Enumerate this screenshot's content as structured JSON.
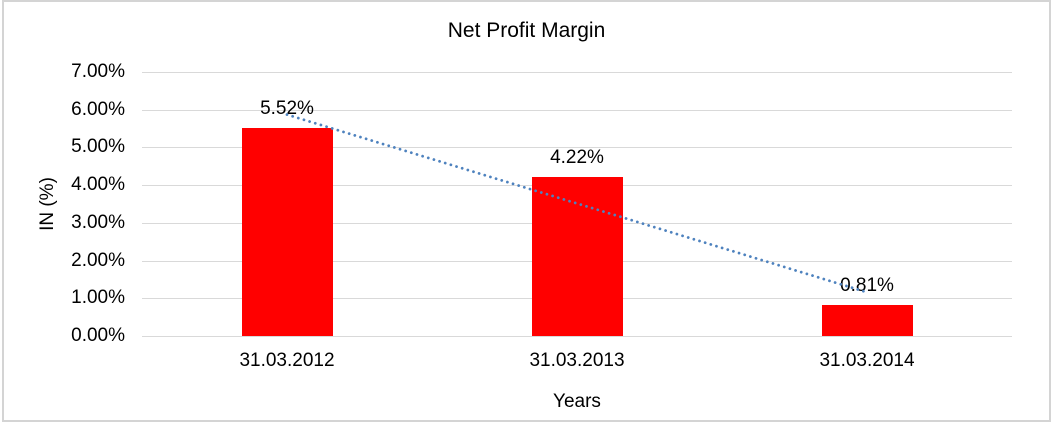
{
  "frame": {
    "border_color": "#d4d4d4"
  },
  "chart_data": {
    "type": "bar",
    "title": "Net Profit Margin",
    "xlabel": "Years",
    "ylabel": "IN (%)",
    "categories": [
      "31.03.2012",
      "31.03.2013",
      "31.03.2014"
    ],
    "series": [
      {
        "name": "Net Profit Margin",
        "values": [
          5.52,
          4.22,
          0.81
        ]
      }
    ],
    "data_labels": [
      "5.52%",
      "4.22%",
      "0.81%"
    ],
    "y_tick_labels": [
      "7.00%",
      "6.00%",
      "5.00%",
      "4.00%",
      "3.00%",
      "2.00%",
      "1.00%",
      "0.00%"
    ],
    "ylim": [
      0,
      7
    ],
    "grid": true,
    "legend": "none",
    "bar_color": "#ff0000",
    "gridline_color": "#d9d9d9",
    "text_color": "#000000",
    "trendline": {
      "style": "dotted",
      "color": "#4e82be",
      "start_value": 5.87,
      "end_value": 1.16
    }
  }
}
